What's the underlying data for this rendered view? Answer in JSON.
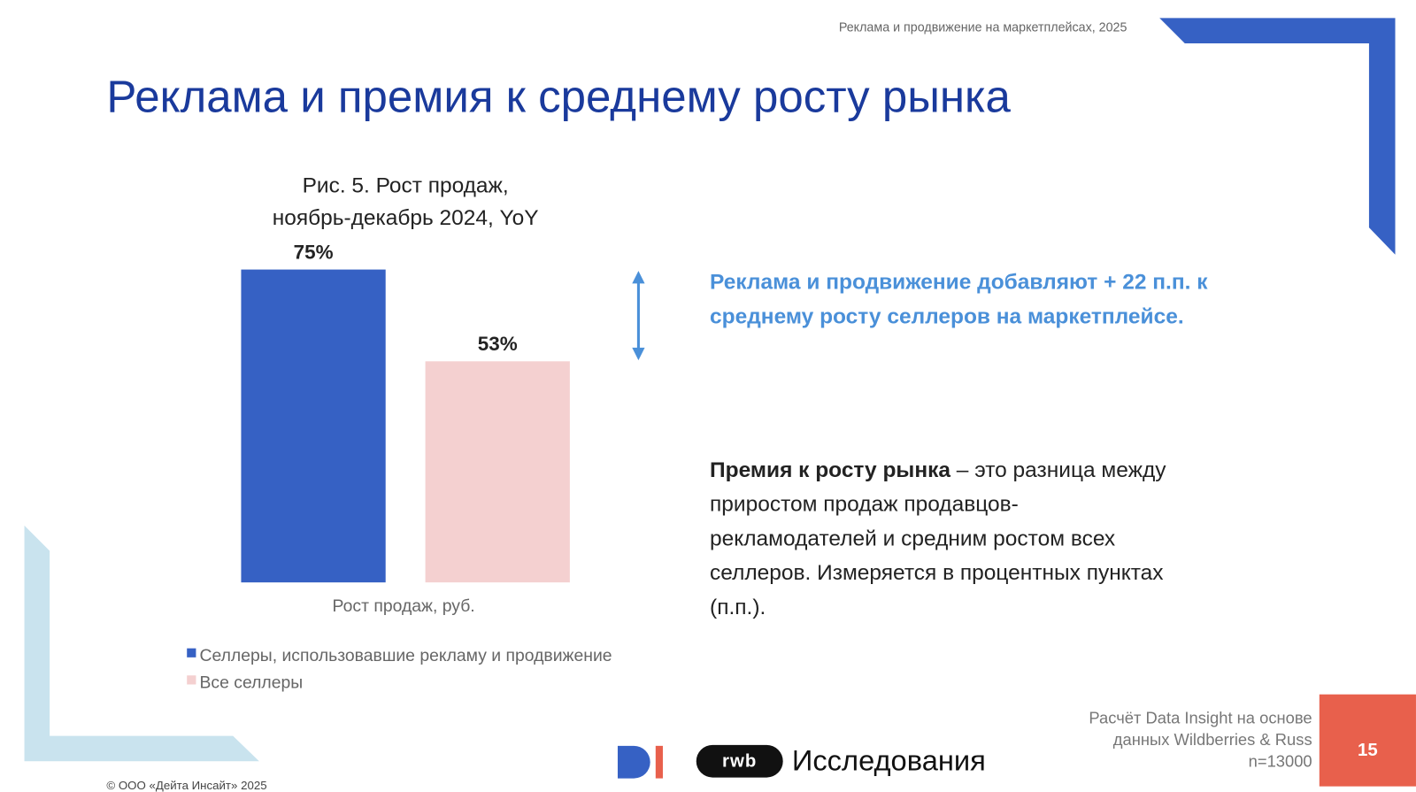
{
  "header": "Реклама и продвижение на маркетплейсах, 2025",
  "heading": "Реклама и премия к среднему росту рынка",
  "chart_data": {
    "type": "bar",
    "title": [
      "Рис. 5. Рост продаж,",
      "ноябрь-декабрь 2024, YoY"
    ],
    "categories": [
      "Рост продаж, руб."
    ],
    "series": [
      {
        "name": "Селлеры, использовавшие рекламу и продвижение",
        "color": "#3661c4",
        "values": [
          75
        ],
        "value_labels": [
          "75%"
        ]
      },
      {
        "name": "Все селлеры",
        "color": "#f4d0d0",
        "values": [
          53
        ],
        "value_labels": [
          "53%"
        ]
      }
    ]
  },
  "callout": "Реклама и продвижение добавляют + 22 п.п. к среднему росту селлеров на маркетплейсе.",
  "definition": {
    "term": "Премия к росту рынка",
    "text": " – это разница между приростом продаж продавцов-рекламодателей и средним ростом всех селлеров. Измеряется в процентных пунктах (п.п.)."
  },
  "source": [
    "Расчёт Data Insight на основе",
    "данных Wildberries & Russ",
    "n=13000"
  ],
  "page_number": "15",
  "logo": {
    "rwb": "rwb",
    "label": "Исследования"
  },
  "copyright": "© ООО «Дейта Инсайт» 2025"
}
